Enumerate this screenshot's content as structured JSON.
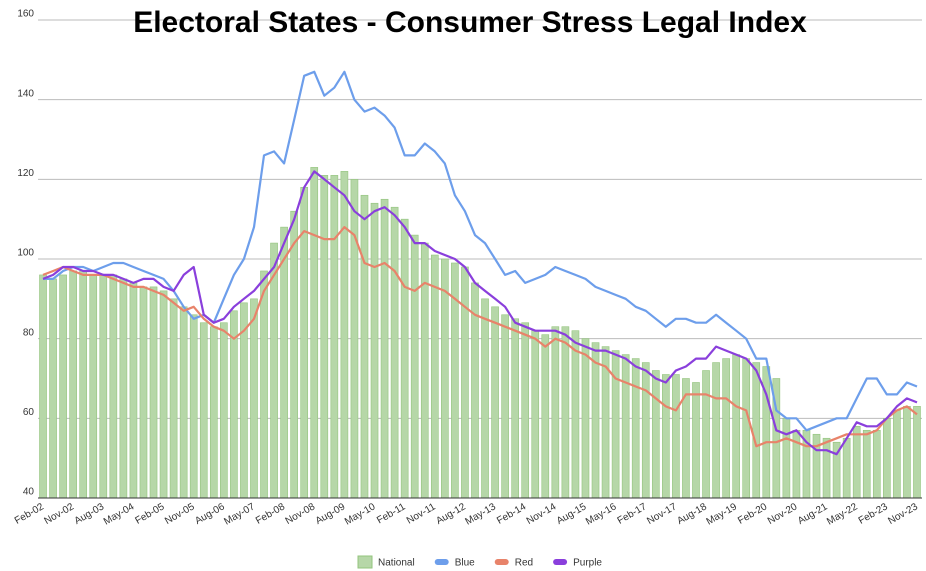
{
  "chart_data": {
    "type": "combo",
    "title": "Electoral States - Consumer Stress Legal Index",
    "categories": [
      "Feb-02",
      null,
      null,
      "Nov-02",
      null,
      null,
      "Aug-03",
      null,
      null,
      "May-04",
      null,
      null,
      "Feb-05",
      null,
      null,
      "Nov-05",
      null,
      null,
      "Aug-06",
      null,
      null,
      "May-07",
      null,
      null,
      "Feb-08",
      null,
      null,
      "Nov-08",
      null,
      null,
      "Aug-09",
      null,
      null,
      "May-10",
      null,
      null,
      "Feb-11",
      null,
      null,
      "Nov-11",
      null,
      null,
      "Aug-12",
      null,
      null,
      "May-13",
      null,
      null,
      "Feb-14",
      null,
      null,
      "Nov-14",
      null,
      null,
      "Aug-15",
      null,
      null,
      "May-16",
      null,
      null,
      "Feb-17",
      null,
      null,
      "Nov-17",
      null,
      null,
      "Aug-18",
      null,
      null,
      "May-19",
      null,
      null,
      "Feb-20",
      null,
      null,
      "Nov-20",
      null,
      null,
      "Aug-21",
      null,
      null,
      "May-22",
      null,
      null,
      "Feb-23",
      null,
      null,
      "Nov-23"
    ],
    "series": [
      {
        "name": "National",
        "type": "bar",
        "color": "#b6d7a8",
        "values": [
          96,
          95,
          96,
          97,
          97,
          96,
          96,
          96,
          95,
          94,
          93,
          93,
          92,
          90,
          88,
          86,
          84,
          83,
          84,
          87,
          89,
          90,
          97,
          104,
          108,
          112,
          118,
          123,
          121,
          121,
          122,
          120,
          116,
          114,
          115,
          113,
          110,
          106,
          104,
          101,
          100,
          99,
          98,
          94,
          90,
          88,
          86,
          85,
          84,
          82,
          81,
          83,
          83,
          82,
          80,
          79,
          78,
          77,
          76,
          75,
          74,
          72,
          71,
          71,
          70,
          69,
          72,
          74,
          75,
          76,
          75,
          74,
          73,
          70,
          60,
          57,
          57,
          56,
          55,
          54,
          55,
          58,
          57,
          57,
          60,
          62,
          63,
          63
        ]
      },
      {
        "name": "Blue",
        "type": "line",
        "color": "#6d9eeb",
        "values": [
          95,
          95,
          97,
          98,
          98,
          97,
          98,
          99,
          99,
          98,
          97,
          96,
          95,
          92,
          88,
          85,
          86,
          84,
          90,
          96,
          100,
          108,
          126,
          127,
          124,
          135,
          146,
          147,
          141,
          143,
          147,
          140,
          137,
          138,
          136,
          133,
          126,
          126,
          129,
          127,
          124,
          116,
          112,
          106,
          104,
          100,
          96,
          97,
          94,
          95,
          96,
          98,
          97,
          96,
          95,
          93,
          92,
          91,
          90,
          88,
          87,
          85,
          83,
          85,
          85,
          84,
          84,
          86,
          84,
          82,
          80,
          75,
          75,
          62,
          60,
          60,
          57,
          58,
          59,
          60,
          60,
          65,
          70,
          70,
          66,
          66,
          69,
          68
        ]
      },
      {
        "name": "Red",
        "type": "line",
        "color": "#e8836a",
        "values": [
          96,
          97,
          98,
          97,
          96,
          96,
          96,
          95,
          94,
          93,
          93,
          92,
          91,
          89,
          87,
          88,
          85,
          83,
          82,
          80,
          82,
          85,
          92,
          96,
          100,
          104,
          107,
          106,
          105,
          105,
          108,
          106,
          99,
          98,
          99,
          97,
          93,
          92,
          94,
          93,
          92,
          90,
          88,
          86,
          85,
          84,
          83,
          82,
          81,
          80,
          78,
          80,
          79,
          77,
          76,
          74,
          73,
          70,
          69,
          68,
          67,
          65,
          63,
          62,
          66,
          66,
          66,
          65,
          65,
          63,
          62,
          53,
          54,
          54,
          55,
          54,
          53,
          53,
          54,
          55,
          56,
          56,
          56,
          57,
          60,
          62,
          63,
          61
        ]
      },
      {
        "name": "Purple",
        "type": "line",
        "color": "#8a3fdc",
        "values": [
          95,
          96,
          98,
          98,
          97,
          97,
          96,
          96,
          95,
          94,
          95,
          95,
          93,
          92,
          96,
          98,
          86,
          84,
          85,
          88,
          90,
          92,
          95,
          98,
          104,
          110,
          118,
          122,
          120,
          118,
          116,
          112,
          110,
          112,
          113,
          111,
          108,
          104,
          104,
          102,
          101,
          100,
          98,
          94,
          92,
          90,
          88,
          84,
          83,
          82,
          82,
          82,
          81,
          79,
          78,
          77,
          77,
          76,
          75,
          73,
          72,
          70,
          69,
          72,
          73,
          75,
          75,
          78,
          77,
          76,
          75,
          72,
          66,
          57,
          56,
          57,
          54,
          52,
          52,
          51,
          55,
          59,
          58,
          58,
          60,
          63,
          65,
          64
        ]
      }
    ],
    "ylim": [
      40,
      160
    ],
    "yticks": [
      40,
      60,
      80,
      100,
      120,
      140,
      160
    ],
    "grid": true
  }
}
